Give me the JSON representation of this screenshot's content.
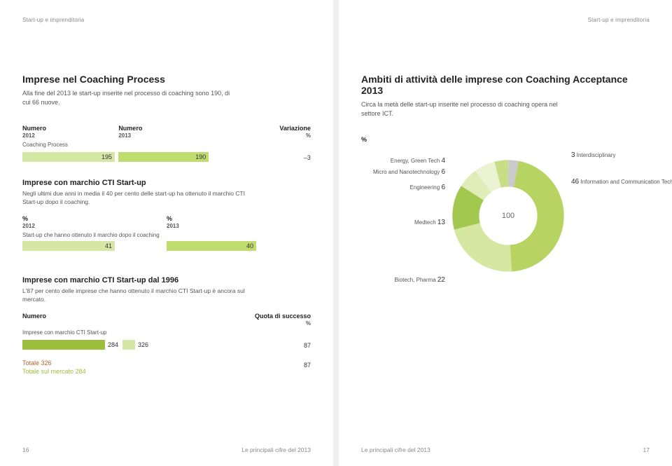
{
  "header_left": "Start-up e imprenditoria",
  "header_right": "Start-up e imprenditoria",
  "left": {
    "title": "Imprese nel Coaching Process",
    "subtitle": "Alla fine del 2013 le start-up inserite nel processo di coaching sono 190, di cui 66 nuove.",
    "cols": {
      "c1": "Numero",
      "c1sub": "2012",
      "c2": "Numero",
      "c2sub": "2013",
      "c3": "Variazione",
      "c3sub": "%"
    },
    "coaching_label": "Coaching Process",
    "coaching": {
      "v2012": "195",
      "v2013": "190",
      "var": "–3"
    },
    "colors": {
      "bar2012": "#d6e6a5",
      "bar2013": "#bfdc6e"
    },
    "bar_widths": {
      "w2012": 132,
      "w2013": 129
    },
    "sec2_title": "Imprese con marchio CTI Start-up",
    "sec2_sub": "Negli ultimi due anni in media il 40 per cento delle start-up ha ottenuto il marchio CTI Start-up dopo il coaching.",
    "sec2_cols": {
      "c1": "%",
      "c1sub": "2012",
      "c2": "%",
      "c2sub": "2013"
    },
    "sec2_label": "Start-up che hanno ottenuto il marchio dopo il coaching",
    "sec2_vals": {
      "v2012": "41",
      "v2013": "40"
    },
    "sec2_bar_widths": {
      "w2012": 132,
      "w2013": 128
    },
    "sec3_title": "Imprese con marchio CTI Start-up dal 1996",
    "sec3_sub": "L'87 per cento delle imprese che hanno ottenuto il marchio CTI Start-up è ancora sul mercato.",
    "sec3_cols": {
      "c1": "Numero",
      "c2": "Quota di successo",
      "c2sub": "%"
    },
    "sec3_label": "Imprese con marchio CTI Start-up",
    "sec3_vals": {
      "v284": "284",
      "v326": "326",
      "q": "87"
    },
    "sec3_bars": {
      "w284": 118,
      "w326": 136,
      "c284": "#9cbf3e",
      "c326": "#d6e6a5"
    },
    "totals": {
      "t1": "Totale",
      "t1v": "326",
      "t2": "Totale sul mercato",
      "t2v": "284",
      "q": "87",
      "c1": "#b9622a",
      "c2": "#9cbf3e"
    },
    "page_num": "16",
    "footer_text": "Le principali cifre del 2013"
  },
  "right": {
    "title": "Ambiti di attività delle imprese con Coaching Acceptance 2013",
    "subtitle": "Circa la metà delle start-up inserite nel processo di coaching opera nel settore ICT.",
    "pct": "%",
    "donut_center": "100",
    "colors": {
      "ict": "#b7d463",
      "biotech": "#d5e7a1",
      "medtech": "#a3c84f",
      "eng": "#e0edb8",
      "nano": "#ecf3d3",
      "energy": "#c7dd86",
      "inter": "#cacaca"
    },
    "segments": {
      "ict": {
        "val": "46",
        "label": "Information and Communication Technologies (ICT)"
      },
      "biotech": {
        "val": "22",
        "label": "Biotech, Pharma"
      },
      "medtech": {
        "val": "13",
        "label": "Medtech"
      },
      "eng": {
        "val": "6",
        "label": "Engineering"
      },
      "nano": {
        "val": "6",
        "label": "Micro and Nanotechnology"
      },
      "energy": {
        "val": "4",
        "label": "Energy, Green Tech"
      },
      "inter": {
        "val": "3",
        "label": "Interdisciplinary"
      }
    },
    "page_num": "17",
    "footer_text": "Le principali cifre del 2013"
  }
}
